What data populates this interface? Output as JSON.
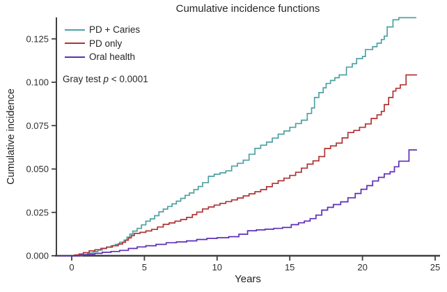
{
  "chart_data": {
    "type": "line",
    "subtype": "step-cumulative-incidence",
    "title": "Cumulative incidence functions",
    "xlabel": "Years",
    "ylabel": "Cumulative incidence",
    "xlim": [
      -1.1,
      25.3
    ],
    "ylim": [
      0,
      0.1405
    ],
    "x_ticks": [
      0,
      5,
      10,
      15,
      20,
      25
    ],
    "y_tick_labels": [
      "0.000",
      "0.025",
      "0.050",
      "0.075",
      "0.100",
      "0.125"
    ],
    "grid": false,
    "legend_position": "inside-top-left",
    "annotation": "Gray test p < 0.0001",
    "annotation_parts": {
      "prefix": "Gray test ",
      "italic": "p",
      "suffix": " < 0.0001"
    },
    "axis_color": "#3f3f3f",
    "series": [
      {
        "name": "PD + Caries",
        "color": "#4FA1A3",
        "points": [
          [
            -1.0,
            0
          ],
          [
            0.7,
            0.0008
          ],
          [
            1.1,
            0.0016
          ],
          [
            1.5,
            0.0024
          ],
          [
            1.8,
            0.0033
          ],
          [
            2.1,
            0.0041
          ],
          [
            2.4,
            0.005
          ],
          [
            2.7,
            0.0058
          ],
          [
            3.0,
            0.0066
          ],
          [
            3.3,
            0.0078
          ],
          [
            3.6,
            0.009
          ],
          [
            3.8,
            0.0107
          ],
          [
            4.0,
            0.0125
          ],
          [
            4.2,
            0.0142
          ],
          [
            4.5,
            0.0158
          ],
          [
            4.8,
            0.0178
          ],
          [
            5.1,
            0.0199
          ],
          [
            5.4,
            0.0213
          ],
          [
            5.7,
            0.0231
          ],
          [
            6.0,
            0.0253
          ],
          [
            6.3,
            0.0269
          ],
          [
            6.6,
            0.0284
          ],
          [
            6.9,
            0.0299
          ],
          [
            7.2,
            0.0315
          ],
          [
            7.5,
            0.0331
          ],
          [
            7.8,
            0.0348
          ],
          [
            8.1,
            0.0362
          ],
          [
            8.4,
            0.0381
          ],
          [
            8.7,
            0.0399
          ],
          [
            9.0,
            0.0421
          ],
          [
            9.4,
            0.0458
          ],
          [
            9.8,
            0.047
          ],
          [
            10.2,
            0.0478
          ],
          [
            10.6,
            0.0489
          ],
          [
            11.0,
            0.0517
          ],
          [
            11.4,
            0.0533
          ],
          [
            11.8,
            0.0551
          ],
          [
            12.2,
            0.0585
          ],
          [
            12.6,
            0.0619
          ],
          [
            13.0,
            0.0637
          ],
          [
            13.4,
            0.0655
          ],
          [
            13.8,
            0.0678
          ],
          [
            14.2,
            0.0701
          ],
          [
            14.6,
            0.0719
          ],
          [
            15.0,
            0.074
          ],
          [
            15.4,
            0.0762
          ],
          [
            15.8,
            0.0781
          ],
          [
            16.2,
            0.082
          ],
          [
            16.5,
            0.0852
          ],
          [
            16.7,
            0.0912
          ],
          [
            17.0,
            0.094
          ],
          [
            17.3,
            0.0968
          ],
          [
            17.5,
            0.0993
          ],
          [
            17.8,
            0.101
          ],
          [
            18.1,
            0.1026
          ],
          [
            18.4,
            0.1042
          ],
          [
            18.9,
            0.1087
          ],
          [
            19.3,
            0.1107
          ],
          [
            19.6,
            0.1136
          ],
          [
            20.0,
            0.1148
          ],
          [
            20.2,
            0.1188
          ],
          [
            20.7,
            0.1205
          ],
          [
            21.0,
            0.1225
          ],
          [
            21.3,
            0.1246
          ],
          [
            21.5,
            0.1266
          ],
          [
            21.7,
            0.1319
          ],
          [
            22.1,
            0.136
          ],
          [
            22.5,
            0.1372
          ],
          [
            23.7,
            0.1372
          ]
        ]
      },
      {
        "name": "PD only",
        "color": "#B03335",
        "points": [
          [
            -1.0,
            0
          ],
          [
            0.2,
            0.0005
          ],
          [
            0.5,
            0.001
          ],
          [
            0.8,
            0.0018
          ],
          [
            1.2,
            0.0028
          ],
          [
            1.6,
            0.0035
          ],
          [
            2.0,
            0.0043
          ],
          [
            2.4,
            0.005
          ],
          [
            2.8,
            0.0058
          ],
          [
            3.2,
            0.0068
          ],
          [
            3.5,
            0.0078
          ],
          [
            3.7,
            0.009
          ],
          [
            3.9,
            0.0103
          ],
          [
            4.1,
            0.0116
          ],
          [
            4.3,
            0.0129
          ],
          [
            4.7,
            0.0135
          ],
          [
            5.1,
            0.0143
          ],
          [
            5.5,
            0.0152
          ],
          [
            5.9,
            0.0166
          ],
          [
            6.3,
            0.0181
          ],
          [
            6.7,
            0.0189
          ],
          [
            7.1,
            0.0199
          ],
          [
            7.5,
            0.0209
          ],
          [
            7.9,
            0.0221
          ],
          [
            8.3,
            0.0237
          ],
          [
            8.6,
            0.0252
          ],
          [
            9.0,
            0.027
          ],
          [
            9.4,
            0.0281
          ],
          [
            9.8,
            0.0292
          ],
          [
            10.2,
            0.0302
          ],
          [
            10.6,
            0.0312
          ],
          [
            11.0,
            0.0322
          ],
          [
            11.4,
            0.0333
          ],
          [
            11.8,
            0.0345
          ],
          [
            12.2,
            0.0357
          ],
          [
            12.6,
            0.0369
          ],
          [
            13.0,
            0.0381
          ],
          [
            13.4,
            0.0398
          ],
          [
            13.8,
            0.0417
          ],
          [
            14.2,
            0.0432
          ],
          [
            14.6,
            0.0447
          ],
          [
            15.0,
            0.0463
          ],
          [
            15.4,
            0.0481
          ],
          [
            15.8,
            0.0505
          ],
          [
            16.2,
            0.0528
          ],
          [
            16.6,
            0.0547
          ],
          [
            17.0,
            0.0572
          ],
          [
            17.4,
            0.0618
          ],
          [
            17.8,
            0.0633
          ],
          [
            18.2,
            0.0649
          ],
          [
            18.6,
            0.0679
          ],
          [
            19.0,
            0.071
          ],
          [
            19.4,
            0.0722
          ],
          [
            19.8,
            0.074
          ],
          [
            20.2,
            0.076
          ],
          [
            20.6,
            0.0791
          ],
          [
            21.0,
            0.0812
          ],
          [
            21.3,
            0.0832
          ],
          [
            21.5,
            0.0871
          ],
          [
            21.8,
            0.0912
          ],
          [
            22.1,
            0.0949
          ],
          [
            22.3,
            0.0965
          ],
          [
            22.6,
            0.0985
          ],
          [
            23.0,
            0.1042
          ],
          [
            23.75,
            0.1042
          ]
        ]
      },
      {
        "name": "Oral health",
        "color": "#5C2EB8",
        "points": [
          [
            -1.0,
            0
          ],
          [
            0.6,
            0.0004
          ],
          [
            1.1,
            0.0009
          ],
          [
            1.6,
            0.0014
          ],
          [
            2.1,
            0.002
          ],
          [
            2.7,
            0.0025
          ],
          [
            3.3,
            0.0031
          ],
          [
            3.9,
            0.0042
          ],
          [
            4.5,
            0.0051
          ],
          [
            5.1,
            0.0058
          ],
          [
            5.8,
            0.0066
          ],
          [
            6.5,
            0.0075
          ],
          [
            7.2,
            0.008
          ],
          [
            7.9,
            0.0086
          ],
          [
            8.6,
            0.0094
          ],
          [
            9.3,
            0.01
          ],
          [
            10.0,
            0.0104
          ],
          [
            10.8,
            0.011
          ],
          [
            11.5,
            0.0124
          ],
          [
            12.1,
            0.0144
          ],
          [
            12.7,
            0.0149
          ],
          [
            13.3,
            0.0153
          ],
          [
            13.9,
            0.0158
          ],
          [
            14.5,
            0.0163
          ],
          [
            15.1,
            0.0179
          ],
          [
            15.6,
            0.019
          ],
          [
            16.0,
            0.02
          ],
          [
            16.4,
            0.0214
          ],
          [
            16.8,
            0.0234
          ],
          [
            17.2,
            0.0263
          ],
          [
            17.6,
            0.0279
          ],
          [
            18.0,
            0.0295
          ],
          [
            18.5,
            0.0311
          ],
          [
            19.0,
            0.0334
          ],
          [
            19.5,
            0.0359
          ],
          [
            19.9,
            0.0383
          ],
          [
            20.3,
            0.0404
          ],
          [
            20.7,
            0.0431
          ],
          [
            21.1,
            0.0452
          ],
          [
            21.5,
            0.0472
          ],
          [
            21.9,
            0.0484
          ],
          [
            22.2,
            0.0513
          ],
          [
            22.5,
            0.0545
          ],
          [
            23.2,
            0.061
          ],
          [
            23.75,
            0.061
          ]
        ]
      }
    ]
  }
}
